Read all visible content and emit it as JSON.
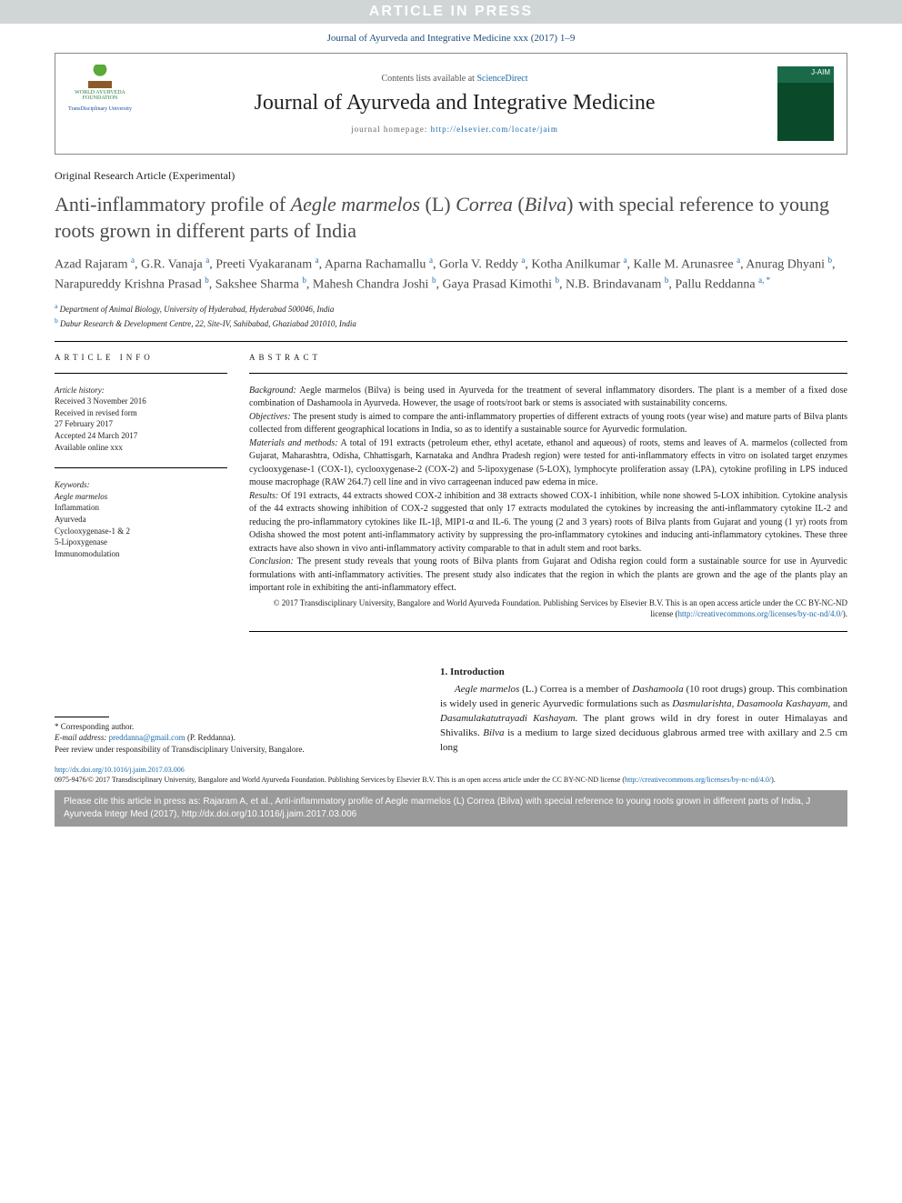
{
  "banner": "ARTICLE IN PRESS",
  "citation_header": "Journal of Ayurveda and Integrative Medicine xxx (2017) 1–9",
  "header": {
    "contents_prefix": "Contents lists available at ",
    "contents_link": "ScienceDirect",
    "journal_name": "Journal of Ayurveda and Integrative Medicine",
    "homepage_prefix": "journal homepage: ",
    "homepage_url": "http://elsevier.com/locate/jaim",
    "left_logo_top": "WORLD AYURVEDA FOUNDATION",
    "left_logo_sub": "TransDisciplinary University",
    "cover_label": "J-AIM"
  },
  "article_type": "Original Research Article (Experimental)",
  "title_parts": {
    "a": "Anti-inflammatory profile of ",
    "b": "Aegle marmelos",
    "c": " (L) ",
    "d": "Correa",
    "e": " (",
    "f": "Bilva",
    "g": ") with special reference to young roots grown in different parts of India"
  },
  "authors_html": "Azad Rajaram <sup>a</sup>, G.R. Vanaja <sup>a</sup>, Preeti Vyakaranam <sup>a</sup>, Aparna Rachamallu <sup>a</sup>, Gorla V. Reddy <sup>a</sup>, Kotha Anilkumar <sup>a</sup>, Kalle M. Arunasree <sup>a</sup>, Anurag Dhyani <sup>b</sup>, Narapureddy Krishna Prasad <sup>b</sup>, Sakshee Sharma <sup>b</sup>, Mahesh Chandra Joshi <sup>b</sup>, Gaya Prasad Kimothi <sup>b</sup>, N.B. Brindavanam <sup>b</sup>, Pallu Reddanna <sup>a, *</sup>",
  "affiliations": [
    {
      "sup": "a",
      "text": "Department of Animal Biology, University of Hyderabad, Hyderabad 500046, India"
    },
    {
      "sup": "b",
      "text": "Dabur Research & Development Centre, 22, Site-IV, Sahibabad, Ghaziabad 201010, India"
    }
  ],
  "article_info": {
    "heading": "ARTICLE INFO",
    "history_label": "Article history:",
    "history": [
      "Received 3 November 2016",
      "Received in revised form",
      "27 February 2017",
      "Accepted 24 March 2017",
      "Available online xxx"
    ],
    "keywords_label": "Keywords:",
    "keywords": [
      "Aegle marmelos",
      "Inflammation",
      "Ayurveda",
      "Cyclooxygenase-1 & 2",
      "5-Lipoxygenase",
      "Immunomodulation"
    ]
  },
  "abstract": {
    "heading": "ABSTRACT",
    "sections": [
      {
        "label": "Background:",
        "text": "Aegle marmelos (Bilva) is being used in Ayurveda for the treatment of several inflammatory disorders. The plant is a member of a fixed dose combination of Dashamoola in Ayurveda. However, the usage of roots/root bark or stems is associated with sustainability concerns."
      },
      {
        "label": "Objectives:",
        "text": "The present study is aimed to compare the anti-inflammatory properties of different extracts of young roots (year wise) and mature parts of Bilva plants collected from different geographical locations in India, so as to identify a sustainable source for Ayurvedic formulation."
      },
      {
        "label": "Materials and methods:",
        "text": "A total of 191 extracts (petroleum ether, ethyl acetate, ethanol and aqueous) of roots, stems and leaves of A. marmelos (collected from Gujarat, Maharashtra, Odisha, Chhattisgarh, Karnataka and Andhra Pradesh region) were tested for anti-inflammatory effects in vitro on isolated target enzymes cyclooxygenase-1 (COX-1), cyclooxygenase-2 (COX-2) and 5-lipoxygenase (5-LOX), lymphocyte proliferation assay (LPA), cytokine profiling in LPS induced mouse macrophage (RAW 264.7) cell line and in vivo carrageenan induced paw edema in mice."
      },
      {
        "label": "Results:",
        "text": "Of 191 extracts, 44 extracts showed COX-2 inhibition and 38 extracts showed COX-1 inhibition, while none showed 5-LOX inhibition. Cytokine analysis of the 44 extracts showing inhibition of COX-2 suggested that only 17 extracts modulated the cytokines by increasing the anti-inflammatory cytokine IL-2 and reducing the pro-inflammatory cytokines like IL-1β, MIP1-α and IL-6. The young (2 and 3 years) roots of Bilva plants from Gujarat and young (1 yr) roots from Odisha showed the most potent anti-inflammatory activity by suppressing the pro-inflammatory cytokines and inducing anti-inflammatory cytokines. These three extracts have also shown in vivo anti-inflammatory activity comparable to that in adult stem and root barks."
      },
      {
        "label": "Conclusion:",
        "text": "The present study reveals that young roots of Bilva plants from Gujarat and Odisha region could form a sustainable source for use in Ayurvedic formulations with anti-inflammatory activities. The present study also indicates that the region in which the plants are grown and the age of the plants play an important role in exhibiting the anti-inflammatory effect."
      }
    ],
    "copyright": "© 2017 Transdisciplinary University, Bangalore and World Ayurveda Foundation. Publishing Services by Elsevier B.V. This is an open access article under the CC BY-NC-ND license (",
    "cc_link": "http://creativecommons.org/licenses/by-nc-nd/4.0/",
    "cc_close": ")."
  },
  "intro": {
    "heading": "1.  Introduction",
    "body_a": "Aegle marmelos",
    "body_b": " (L.) Correa is a member of ",
    "body_c": "Dashamoola",
    "body_d": " (10 root drugs) group. This combination is widely used in generic Ayurvedic formulations such as ",
    "body_e": "Dasmularishta, Dasamoola Kashayam,",
    "body_f": " and ",
    "body_g": "Dasamulakatutrayadi Kashayam.",
    "body_h": " The plant grows wild in dry forest in outer Himalayas and Shivaliks. ",
    "body_i": "Bilva",
    "body_j": " is a medium to large sized deciduous glabrous armed tree with axillary and 2.5 cm long"
  },
  "corresponding": {
    "label": "* Corresponding author.",
    "email_label": "E-mail address: ",
    "email": "preddanna@gmail.com",
    "email_who": " (P. Reddanna).",
    "peer": "Peer review under responsibility of Transdisciplinary University, Bangalore."
  },
  "footer": {
    "doi": "http://dx.doi.org/10.1016/j.jaim.2017.03.006",
    "issn_line": "0975-9476/© 2017 Transdisciplinary University, Bangalore and World Ayurveda Foundation. Publishing Services by Elsevier B.V. This is an open access article under the CC BY-NC-ND license (",
    "cc_link": "http://creativecommons.org/licenses/by-nc-nd/4.0/",
    "cc_close": ")."
  },
  "cite_box": "Please cite this article in press as: Rajaram A, et al., Anti-inflammatory profile of Aegle marmelos (L) Correa (Bilva) with special reference to young roots grown in different parts of India, J Ayurveda Integr Med (2017), http://dx.doi.org/10.1016/j.jaim.2017.03.006",
  "colors": {
    "banner_bg": "#d0d5d5",
    "banner_fg": "#ffffff",
    "link": "#1a6aaa",
    "citebox_bg": "#9a9a9a",
    "citebox_fg": "#ffffff",
    "text": "#222222"
  }
}
